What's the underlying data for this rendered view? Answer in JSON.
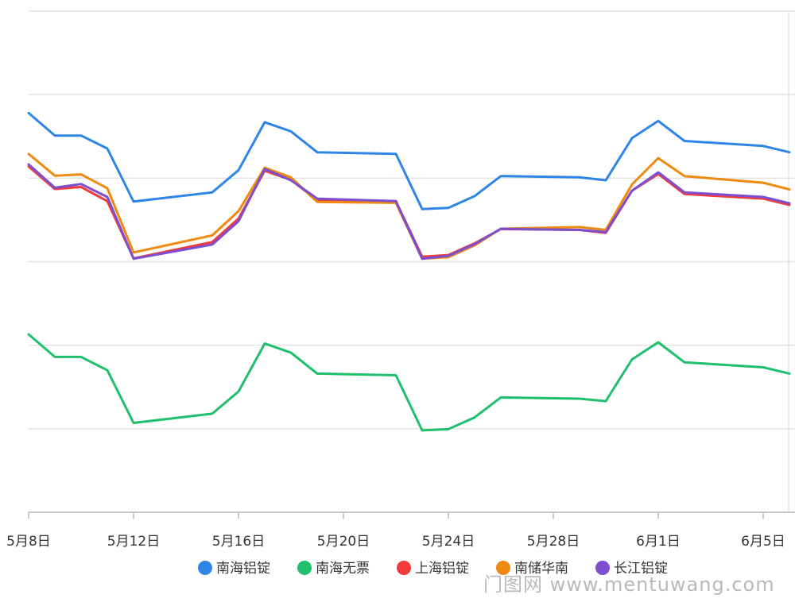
{
  "chart_data": {
    "type": "line",
    "x": [
      "5月8日",
      "5月9日",
      "5月10日",
      "5月11日",
      "5月12日",
      "5月15日",
      "5月16日",
      "5月17日",
      "5月18日",
      "5月19日",
      "5月22日",
      "5月23日",
      "5月24日",
      "5月25日",
      "5月26日",
      "5月29日",
      "5月30日",
      "5月31日",
      "6月1日",
      "6月2日",
      "6月5日",
      "6月6日"
    ],
    "x_ticks": [
      "5月8日",
      "5月12日",
      "5月16日",
      "5月20日",
      "5月24日",
      "5月28日",
      "6月1日",
      "6月5日"
    ],
    "ylim": [
      13200,
      14400
    ],
    "yticks": [
      13200,
      13400,
      13600,
      13800,
      14000,
      14200,
      14400
    ],
    "grid": true,
    "legend": "bottom",
    "series": [
      {
        "name": "南海铝锭",
        "color": "#2f85e6",
        "values": [
          14156,
          14102,
          14102,
          14071,
          13944,
          13966,
          14019,
          14134,
          14112,
          14062,
          14058,
          13926,
          13929,
          13957,
          14005,
          14002,
          13995,
          14096,
          14137,
          14089,
          14077,
          14062
        ]
      },
      {
        "name": "南海无票",
        "color": "#1fbf6b",
        "values": [
          13626,
          13572,
          13572,
          13540,
          13414,
          13436,
          13489,
          13604,
          13582,
          13532,
          13528,
          13396,
          13399,
          13427,
          13475,
          13472,
          13466,
          13566,
          13607,
          13559,
          13547,
          13532
        ]
      },
      {
        "name": "上海铝锭",
        "color": "#f23a3a",
        "values": [
          14028,
          13974,
          13979,
          13945,
          13808,
          13847,
          13903,
          14018,
          13996,
          13947,
          13945,
          13812,
          13816,
          13844,
          13878,
          13876,
          13869,
          13970,
          14010,
          13962,
          13951,
          13936
        ]
      },
      {
        "name": "南储华南",
        "color": "#f0890f",
        "values": [
          14058,
          14006,
          14009,
          13976,
          13822,
          13863,
          13921,
          14025,
          14002,
          13943,
          13941,
          13807,
          13811,
          13839,
          13879,
          13883,
          13876,
          13985,
          14048,
          14005,
          13989,
          13973
        ]
      },
      {
        "name": "长江铝锭",
        "color": "#7b4fd0",
        "values": [
          14033,
          13977,
          13986,
          13955,
          13807,
          13841,
          13897,
          14022,
          13995,
          13951,
          13945,
          13807,
          13814,
          13842,
          13879,
          13876,
          13871,
          13970,
          14014,
          13966,
          13955,
          13940
        ]
      }
    ]
  },
  "watermark": "门图网 www.mentuwang.com"
}
